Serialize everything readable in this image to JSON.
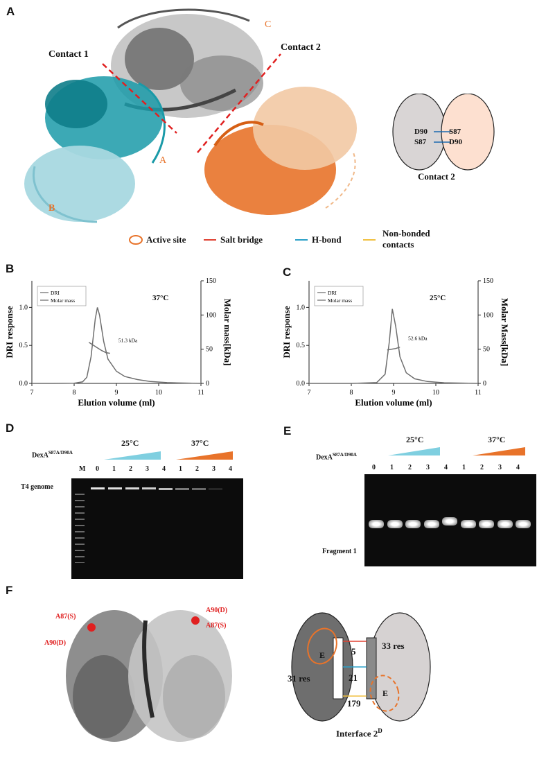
{
  "panels": {
    "A": {
      "letter": "A",
      "contact1": "Contact 1",
      "contact2": "Contact 2",
      "chain_labels": {
        "A": "A",
        "B": "B",
        "C": "C"
      },
      "contact_diagram": {
        "left_res1": "D90",
        "left_res2": "S87",
        "right_res1": "S87",
        "right_res2": "D90",
        "title": "Contact 2"
      },
      "legend": {
        "active_site": "Active site",
        "salt_bridge": "Salt bridge",
        "h_bond": "H-bond",
        "non_bonded_1": "Non-bonded",
        "non_bonded_2": "contacts"
      },
      "colors": {
        "chainA": "#1a9aa8",
        "chainB": "#a8d8e0",
        "chainC": "#8a8a8a",
        "chainD": "#e8732a",
        "salt": "#e04030",
        "hbond": "#2aa0c8",
        "nonbond": "#f0c040",
        "active": "#e8732a"
      }
    },
    "B": {
      "letter": "B",
      "temp": "37°C"
    },
    "C": {
      "letter": "C",
      "temp": "25°C"
    },
    "D": {
      "letter": "D",
      "protein_base": "DexA",
      "protein_sup": "S87A/D90A",
      "temp_low": "25°C",
      "temp_high": "37°C",
      "lanes": [
        "M",
        "0",
        "1",
        "2",
        "3",
        "4",
        "1",
        "2",
        "3",
        "4"
      ],
      "band_label": "T4 genome"
    },
    "E": {
      "letter": "E",
      "protein_base": "DexA",
      "protein_sup": "S87A/D90A",
      "temp_low": "25°C",
      "temp_high": "37°C",
      "lanes": [
        "0",
        "1",
        "2",
        "3",
        "4",
        "1",
        "2",
        "3",
        "4"
      ],
      "band_label": "Fragment 1"
    },
    "F": {
      "letter": "F",
      "labels": {
        "a87s_left": "A87(S)",
        "a90d_left": "A90(D)",
        "a90d_right": "A90(D)",
        "a87s_right": "A87(S)"
      },
      "interface": {
        "left_res": "31 res",
        "right_res": "33 res",
        "salt": "5",
        "hbond": "21",
        "nonbond": "179",
        "left_site": "E",
        "right_site": "E",
        "title_base": "Interface 2",
        "title_sup": "D"
      }
    }
  },
  "chart_data": [
    {
      "type": "line",
      "panel": "B",
      "legend": [
        "DRI",
        "Molar mass"
      ],
      "annotation": "51.3 kDa",
      "annotation_value": 51.3,
      "xlabel": "Elution volume (ml)",
      "ylabel": "DRI response",
      "y2label": "Molar mass[kDa]",
      "xlim": [
        7,
        11
      ],
      "ylim": [
        0,
        1.35
      ],
      "y2lim": [
        0,
        150
      ],
      "xticks": [
        7,
        8,
        9,
        10,
        11
      ],
      "yticks": [
        0.0,
        0.5,
        1.0
      ],
      "y2ticks": [
        0,
        50,
        100,
        150
      ],
      "series": [
        {
          "name": "DRI",
          "x": [
            7.0,
            7.5,
            8.0,
            8.2,
            8.3,
            8.4,
            8.5,
            8.55,
            8.6,
            8.7,
            8.8,
            9.0,
            9.2,
            9.5,
            9.8,
            10.2,
            11.0
          ],
          "y": [
            0,
            0,
            0.002,
            0.02,
            0.08,
            0.35,
            0.85,
            1.0,
            0.9,
            0.55,
            0.32,
            0.16,
            0.09,
            0.05,
            0.025,
            0.01,
            0.0
          ]
        },
        {
          "name": "Molar mass",
          "axis": "right",
          "x": [
            8.35,
            8.45,
            8.55,
            8.65,
            8.75,
            8.85
          ],
          "y": [
            60,
            56,
            52,
            48,
            45,
            44
          ]
        }
      ]
    },
    {
      "type": "line",
      "panel": "C",
      "legend": [
        "DRI",
        "Molar mass"
      ],
      "annotation": "52.6 kDa",
      "annotation_value": 52.6,
      "xlabel": "Elution volume (ml)",
      "ylabel": "DRI response",
      "y2label": "Molar Mass[kDa]",
      "xlim": [
        7,
        11
      ],
      "ylim": [
        0,
        1.35
      ],
      "y2lim": [
        0,
        150
      ],
      "xticks": [
        7,
        8,
        9,
        10,
        11
      ],
      "yticks": [
        0.0,
        0.5,
        1.0
      ],
      "y2ticks": [
        0,
        50,
        100,
        150
      ],
      "series": [
        {
          "name": "DRI",
          "x": [
            7.0,
            7.5,
            8.0,
            8.6,
            8.8,
            8.9,
            8.97,
            9.05,
            9.15,
            9.3,
            9.5,
            9.8,
            10.2,
            11.0
          ],
          "y": [
            0,
            0,
            0,
            0.01,
            0.12,
            0.55,
            0.98,
            0.75,
            0.35,
            0.14,
            0.06,
            0.025,
            0.008,
            0.0
          ]
        },
        {
          "name": "Molar mass",
          "axis": "right",
          "x": [
            8.85,
            8.95,
            9.05,
            9.15
          ],
          "y": [
            49,
            50,
            51,
            53
          ]
        }
      ]
    }
  ]
}
